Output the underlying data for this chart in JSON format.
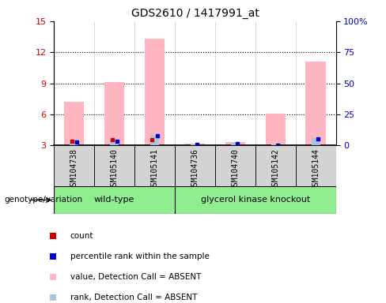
{
  "title": "GDS2610 / 1417991_at",
  "samples": [
    "GSM104738",
    "GSM105140",
    "GSM105141",
    "GSM104736",
    "GSM104740",
    "GSM105142",
    "GSM105144"
  ],
  "group_labels": [
    "wild-type",
    "glycerol kinase knockout"
  ],
  "wt_count": 3,
  "gk_count": 4,
  "pink_bar_values": [
    7.2,
    9.1,
    13.3,
    3.2,
    3.3,
    6.1,
    11.1
  ],
  "blue_bar_values": [
    3.55,
    3.55,
    4.0,
    3.12,
    3.22,
    3.12,
    3.72
  ],
  "count_dots": [
    3.42,
    3.52,
    3.52,
    null,
    null,
    null,
    null
  ],
  "rank_dots": [
    3.35,
    3.42,
    3.92,
    3.1,
    3.2,
    3.05,
    3.6
  ],
  "ylim_left": [
    3,
    15
  ],
  "ylim_right": [
    0,
    100
  ],
  "yticks_left": [
    3,
    6,
    9,
    12,
    15
  ],
  "yticks_right": [
    0,
    25,
    50,
    75,
    100
  ],
  "ytick_labels_left": [
    "3",
    "6",
    "9",
    "12",
    "15"
  ],
  "ytick_labels_right": [
    "0",
    "25",
    "50",
    "75",
    "100%"
  ],
  "ylabel_left_color": "#cc0000",
  "ylabel_right_color": "#0000cc",
  "count_color": "#cc0000",
  "rank_color": "#0000cc",
  "pink_color": "#ffb6c1",
  "blue_color": "#aac4de",
  "gray_color": "#d3d3d3",
  "green_color": "#90ee90",
  "genotype_label": "genotype/variation",
  "legend_items": [
    {
      "label": "count",
      "color": "#cc0000"
    },
    {
      "label": "percentile rank within the sample",
      "color": "#0000cc"
    },
    {
      "label": "value, Detection Call = ABSENT",
      "color": "#ffb6c1"
    },
    {
      "label": "rank, Detection Call = ABSENT",
      "color": "#aac4de"
    }
  ],
  "background_color": "#ffffff",
  "grid_yticks": [
    6,
    9,
    12
  ]
}
